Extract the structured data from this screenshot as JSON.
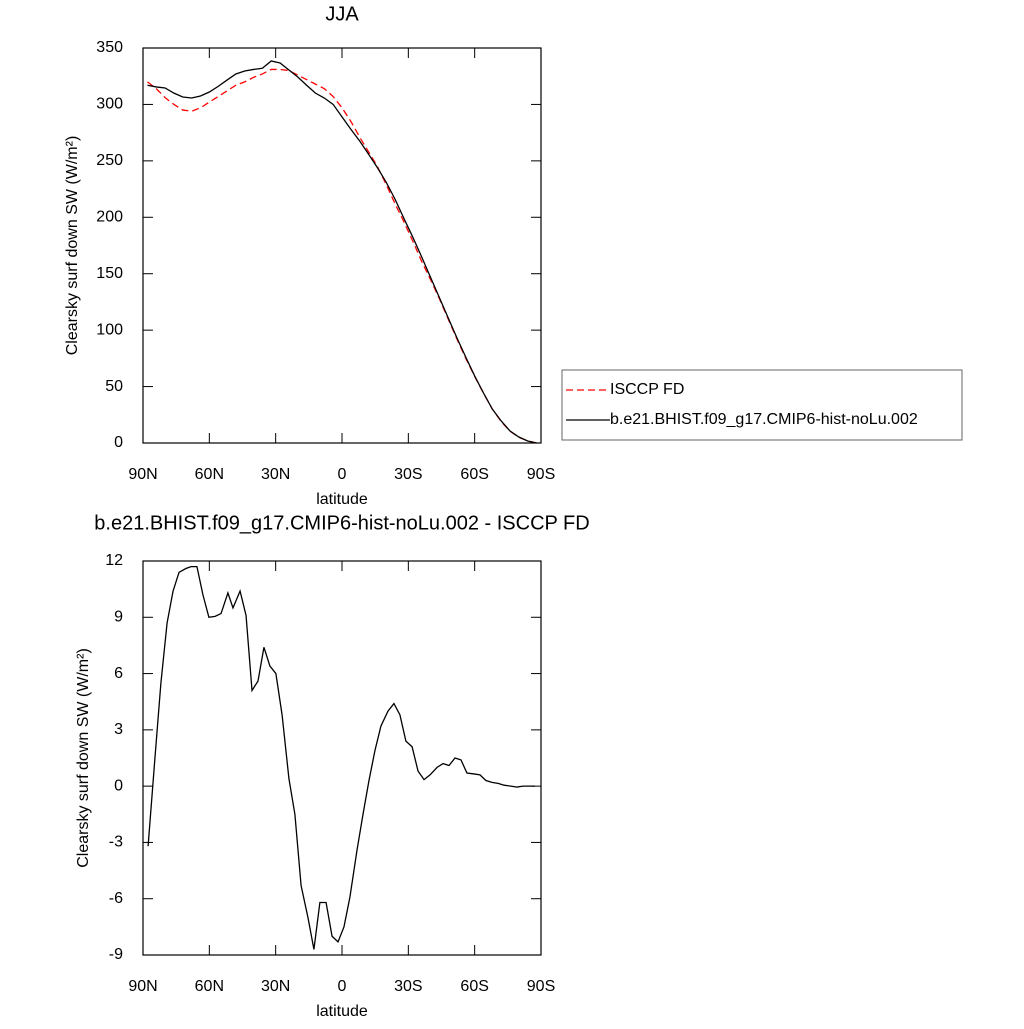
{
  "chart_data": [
    {
      "type": "line",
      "title": "JJA",
      "x_label": "latitude",
      "y_label": "Clearsky surf down SW (W/m²)",
      "x": [
        88,
        84,
        80,
        76,
        72,
        68,
        64,
        60,
        56,
        52,
        48,
        44,
        40,
        36,
        32,
        28,
        24,
        20,
        16,
        12,
        8,
        4,
        0,
        -4,
        -8,
        -12,
        -16,
        -20,
        -24,
        -28,
        -32,
        -36,
        -40,
        -44,
        -48,
        -52,
        -56,
        -60,
        -64,
        -68,
        -72,
        -76,
        -80,
        -84,
        -88
      ],
      "series": [
        {
          "name": "ISCCP FD",
          "color": "#ff0000",
          "line_style": "dashed",
          "values": [
            320,
            314,
            306,
            300,
            295,
            294,
            297,
            302,
            307,
            312,
            317,
            320,
            324,
            327,
            331,
            331,
            330,
            326,
            322,
            318,
            314,
            307,
            297,
            285,
            271,
            258,
            245,
            229,
            212,
            196,
            179,
            161,
            145,
            128,
            110,
            92,
            75,
            59,
            44,
            30,
            19,
            10.5,
            5,
            1.8,
            0
          ]
        },
        {
          "name": "b.e21.BHIST.f09_g17.CMIP6-hist-noLu.002",
          "color": "#000000",
          "line_style": "solid",
          "values": [
            317,
            315.5,
            314.6,
            310,
            306.6,
            305.7,
            307.5,
            311,
            316,
            321.6,
            327,
            329.6,
            331,
            332,
            338.5,
            336.7,
            330.5,
            324.3,
            317,
            310,
            305.7,
            300,
            289,
            278,
            267.6,
            256,
            244,
            231,
            216,
            199,
            182.5,
            165,
            147,
            129,
            111,
            93,
            76,
            59.4,
            44.3,
            30,
            19.5,
            10.6,
            5.3,
            1.8,
            0
          ]
        }
      ],
      "xlim": [
        90,
        -90
      ],
      "xticks": [
        {
          "value": 90,
          "label": "90N"
        },
        {
          "value": 60,
          "label": "60N"
        },
        {
          "value": 30,
          "label": "30N"
        },
        0,
        {
          "value": -30,
          "label": "30S"
        },
        {
          "value": -60,
          "label": "60S"
        },
        {
          "value": -90,
          "label": "90S"
        }
      ],
      "ylim": [
        0,
        350
      ],
      "yticks": [
        0,
        50,
        100,
        150,
        200,
        250,
        300,
        350
      ],
      "legend": "right"
    },
    {
      "type": "line",
      "title": "b.e21.BHIST.f09_g17.CMIP6-hist-noLu.002 - ISCCP FD",
      "x_label": "latitude",
      "y_label": "Clearsky surf down SW (W/m²)",
      "x": [
        87.7,
        84.6,
        81.9,
        79.1,
        76.4,
        73.7,
        70.6,
        68.3,
        65.6,
        62.9,
        60.2,
        57.4,
        54.7,
        51.6,
        49.3,
        46.1,
        43.4,
        40.7,
        38.0,
        35.3,
        32.6,
        29.9,
        27.1,
        24.0,
        21.3,
        18.5,
        15.4,
        12.7,
        10.0,
        7.2,
        4.5,
        1.8,
        -0.9,
        -3.6,
        -6.8,
        -9.5,
        -12.2,
        -14.9,
        -17.6,
        -20.8,
        -23.5,
        -26.2,
        -28.9,
        -31.7,
        -34.4,
        -37.1,
        -39.8,
        -43.0,
        -45.7,
        -48.4,
        -51.1,
        -53.8,
        -56.5,
        -59.7,
        -62.4,
        -65.1,
        -67.8,
        -70.6,
        -73.3,
        -76.4,
        -79.1,
        -81.9,
        -84.6,
        -87.3
      ],
      "series": [
        {
          "name": "b.e21.BHIST.f09_g17.CMIP6-hist-noLu.002 - ISCCP FD",
          "color": "#000000",
          "line_style": "solid",
          "values": [
            -3.2,
            1.5,
            5.5,
            8.7,
            10.4,
            11.4,
            11.6,
            11.7,
            11.7,
            10.2,
            9.0,
            9.05,
            9.2,
            10.3,
            9.5,
            10.4,
            9.1,
            5.1,
            5.6,
            7.4,
            6.4,
            6.0,
            3.8,
            0.4,
            -1.5,
            -5.3,
            -7.0,
            -8.7,
            -6.2,
            -6.2,
            -8.0,
            -8.3,
            -7.5,
            -5.9,
            -3.4,
            -1.5,
            0.3,
            1.9,
            3.2,
            4.0,
            4.4,
            3.8,
            2.4,
            2.1,
            0.8,
            0.35,
            0.6,
            1.0,
            1.2,
            1.1,
            1.5,
            1.4,
            0.7,
            0.65,
            0.6,
            0.3,
            0.2,
            0.15,
            0.05,
            0.0,
            -0.05,
            0.0,
            0.0,
            0.0
          ]
        }
      ],
      "xlim": [
        90,
        -90
      ],
      "xticks": [
        {
          "value": 90,
          "label": "90N"
        },
        {
          "value": 60,
          "label": "60N"
        },
        {
          "value": 30,
          "label": "30N"
        },
        0,
        {
          "value": -30,
          "label": "30S"
        },
        {
          "value": -60,
          "label": "60S"
        },
        {
          "value": -90,
          "label": "90S"
        }
      ],
      "ylim": [
        -9,
        12
      ],
      "yticks": [
        -9,
        -6,
        -3,
        0,
        3,
        6,
        9,
        12
      ]
    }
  ]
}
